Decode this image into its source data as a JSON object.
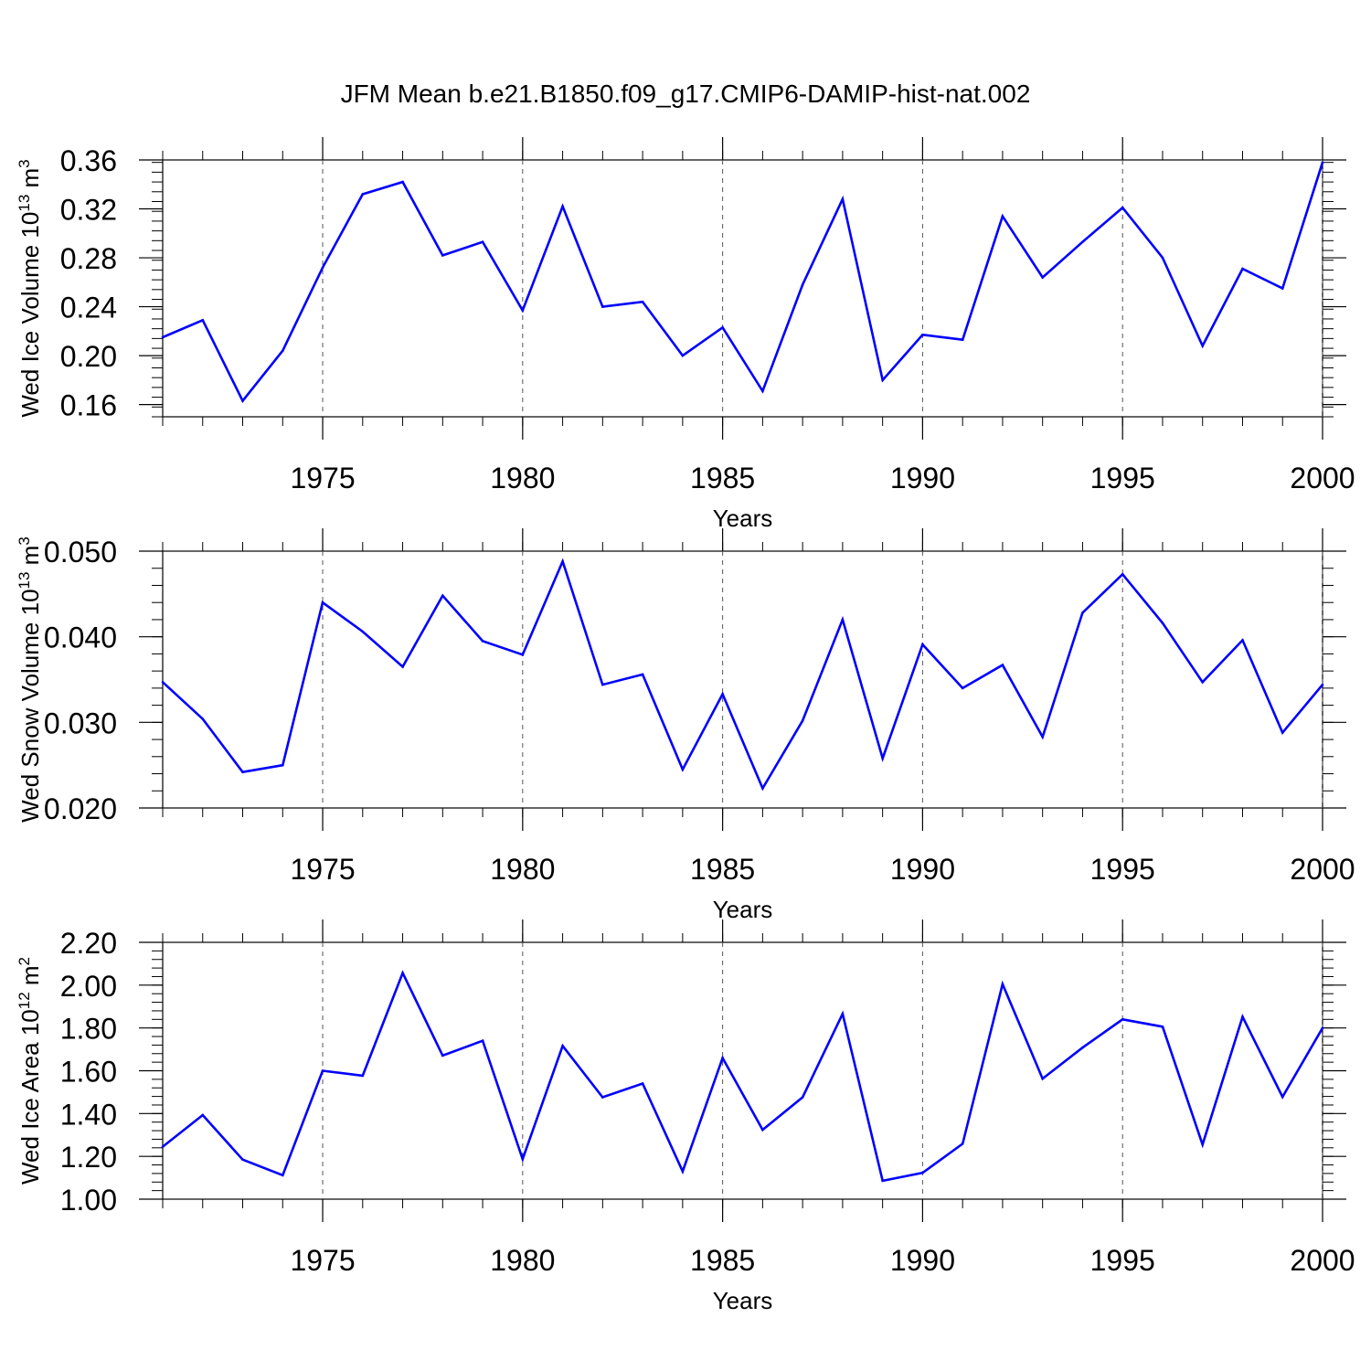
{
  "title": "JFM Mean b.e21.B1850.f09_g17.CMIP6-DAMIP-hist-nat.002",
  "colors": {
    "line": "#0000ff",
    "axis": "#000000",
    "grid": "#555555"
  },
  "chart_data": [
    {
      "type": "line",
      "ylabel": "Wed Ice Volume 10",
      "ylabel_exp": "13",
      "ylabel_unit": "m",
      "ylabel_unit_exp": "3",
      "xlabel": "Years",
      "xlim": [
        1971,
        2000
      ],
      "ylim": [
        0.15,
        0.36
      ],
      "yticks": [
        "0.16",
        "0.20",
        "0.24",
        "0.28",
        "0.32",
        "0.36"
      ],
      "xticks": [
        "1975",
        "1980",
        "1985",
        "1990",
        "1995",
        "2000"
      ],
      "x": [
        1971,
        1972,
        1973,
        1974,
        1975,
        1976,
        1977,
        1978,
        1979,
        1980,
        1981,
        1982,
        1983,
        1984,
        1985,
        1986,
        1987,
        1988,
        1989,
        1990,
        1991,
        1992,
        1993,
        1994,
        1995,
        1996,
        1997,
        1998,
        1999,
        2000
      ],
      "values": [
        0.215,
        0.229,
        0.163,
        0.204,
        0.272,
        0.332,
        0.342,
        0.282,
        0.293,
        0.237,
        0.322,
        0.24,
        0.244,
        0.2,
        0.223,
        0.171,
        0.258,
        0.328,
        0.18,
        0.217,
        0.213,
        0.314,
        0.264,
        0.293,
        0.321,
        0.28,
        0.208,
        0.271,
        0.255,
        0.358
      ]
    },
    {
      "type": "line",
      "ylabel": "Wed Snow Volume 10",
      "ylabel_exp": "13",
      "ylabel_unit": "m",
      "ylabel_unit_exp": "3",
      "xlabel": "Years",
      "xlim": [
        1971,
        2000
      ],
      "ylim": [
        0.02,
        0.05
      ],
      "yticks": [
        "0.020",
        "0.030",
        "0.040",
        "0.050"
      ],
      "xticks": [
        "1975",
        "1980",
        "1985",
        "1990",
        "1995",
        "2000"
      ],
      "x": [
        1971,
        1972,
        1973,
        1974,
        1975,
        1976,
        1977,
        1978,
        1979,
        1980,
        1981,
        1982,
        1983,
        1984,
        1985,
        1986,
        1987,
        1988,
        1989,
        1990,
        1991,
        1992,
        1993,
        1994,
        1995,
        1996,
        1997,
        1998,
        1999,
        2000
      ],
      "values": [
        0.0347,
        0.0304,
        0.0242,
        0.025,
        0.044,
        0.0406,
        0.0365,
        0.0448,
        0.0395,
        0.0379,
        0.0488,
        0.0344,
        0.0356,
        0.0245,
        0.0333,
        0.0223,
        0.0302,
        0.042,
        0.0258,
        0.0391,
        0.034,
        0.0367,
        0.0283,
        0.0428,
        0.0473,
        0.0416,
        0.0347,
        0.0396,
        0.0288,
        0.0344
      ]
    },
    {
      "type": "line",
      "ylabel": "Wed Ice Area 10",
      "ylabel_exp": "12",
      "ylabel_unit": "m",
      "ylabel_unit_exp": "2",
      "xlabel": "Years",
      "xlim": [
        1971,
        2000
      ],
      "ylim": [
        1.0,
        2.2
      ],
      "yticks": [
        "1.00",
        "1.20",
        "1.40",
        "1.60",
        "1.80",
        "2.00",
        "2.20"
      ],
      "xticks": [
        "1975",
        "1980",
        "1985",
        "1990",
        "1995",
        "2000"
      ],
      "x": [
        1971,
        1972,
        1973,
        1974,
        1975,
        1976,
        1977,
        1978,
        1979,
        1980,
        1981,
        1982,
        1983,
        1984,
        1985,
        1986,
        1987,
        1988,
        1989,
        1990,
        1991,
        1992,
        1993,
        1994,
        1995,
        1996,
        1997,
        1998,
        1999,
        2000
      ],
      "values": [
        1.245,
        1.393,
        1.185,
        1.112,
        1.6,
        1.577,
        2.057,
        1.671,
        1.74,
        1.187,
        1.716,
        1.476,
        1.54,
        1.13,
        1.66,
        1.324,
        1.476,
        1.866,
        1.086,
        1.123,
        1.259,
        2.005,
        1.563,
        1.708,
        1.84,
        1.806,
        1.255,
        1.852,
        1.478,
        1.8
      ]
    }
  ]
}
